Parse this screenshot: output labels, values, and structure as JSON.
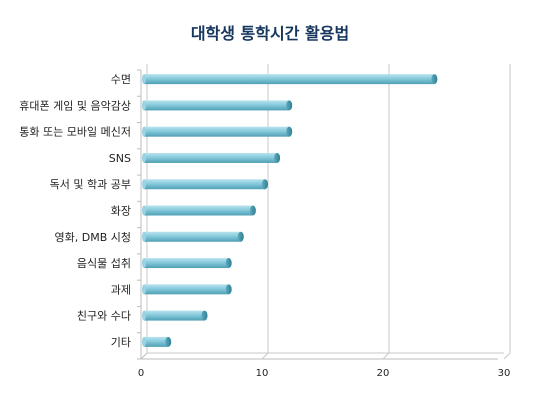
{
  "chart_data": {
    "type": "bar",
    "orientation": "horizontal",
    "title": "대학생 통학시간 활용법",
    "categories": [
      "수면",
      "휴대폰 게임 및 음악감상",
      "통화 또는 모바일 메신저",
      "SNS",
      "독서 및 학과 공부",
      "화장",
      "영화, DMB 시청",
      "음식물 섭취",
      "과제",
      "친구와 수다",
      "기타"
    ],
    "values": [
      24,
      12,
      12,
      11,
      10,
      9,
      8,
      7,
      7,
      5,
      2
    ],
    "xlim": [
      0,
      30
    ],
    "xticks": [
      "0",
      "10",
      "20",
      "30"
    ],
    "grid": true,
    "legend": "none",
    "bar_color": "#7fc6d9"
  }
}
